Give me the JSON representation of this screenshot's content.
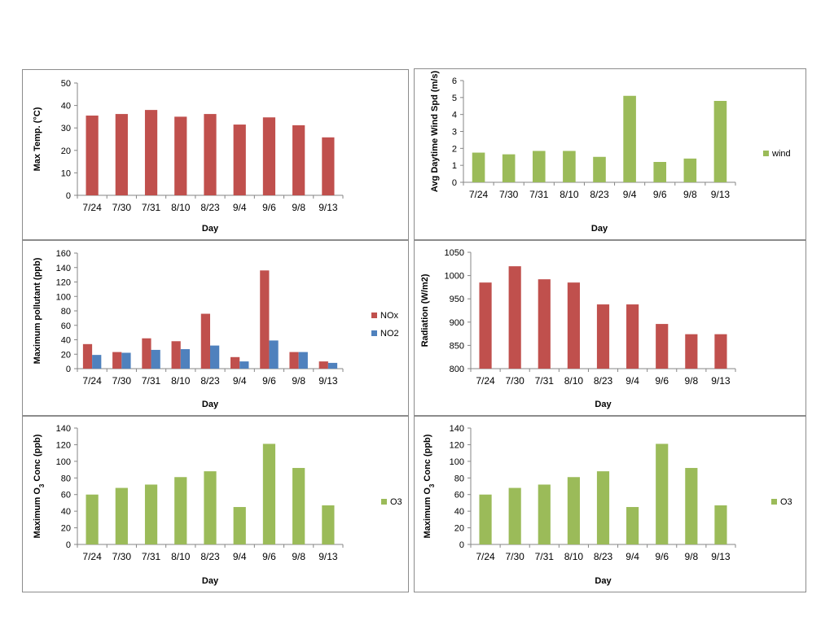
{
  "chart_data": [
    {
      "type": "bar",
      "categories": [
        "7/24",
        "7/30",
        "7/31",
        "8/10",
        "8/23",
        "9/4",
        "9/6",
        "9/8",
        "9/13"
      ],
      "series": [
        {
          "values": [
            35.5,
            36.2,
            38,
            35,
            36.2,
            31.5,
            34.7,
            31.2,
            25.8
          ],
          "color": "#c0504d"
        }
      ],
      "xlabel": "Day",
      "ylabel": "Max Temp. (°C)",
      "ylim": [
        0,
        50
      ],
      "yticks": [
        0,
        10,
        20,
        30,
        40,
        50
      ],
      "legend": null
    },
    {
      "type": "bar",
      "categories": [
        "7/24",
        "7/30",
        "7/31",
        "8/10",
        "8/23",
        "9/4",
        "9/6",
        "9/8",
        "9/13"
      ],
      "series": [
        {
          "name": "wind",
          "values": [
            1.75,
            1.65,
            1.85,
            1.85,
            1.5,
            5.1,
            1.2,
            1.4,
            4.8
          ],
          "color": "#9bbb59"
        }
      ],
      "xlabel": "Day",
      "ylabel": "Avg Daytime Wind Spd (m/s)",
      "ylim": [
        0,
        6
      ],
      "yticks": [
        0,
        1,
        2,
        3,
        4,
        5,
        6
      ],
      "legend": "right"
    },
    {
      "type": "bar",
      "categories": [
        "7/24",
        "7/30",
        "7/31",
        "8/10",
        "8/23",
        "9/4",
        "9/6",
        "9/8",
        "9/13"
      ],
      "series": [
        {
          "name": "NOx",
          "values": [
            34,
            23,
            42,
            38,
            76,
            16,
            136,
            23,
            10
          ],
          "color": "#c0504d"
        },
        {
          "name": "NO2",
          "values": [
            19,
            22,
            26,
            27,
            32,
            10,
            39,
            23,
            8
          ],
          "color": "#4f81bd"
        }
      ],
      "xlabel": "Day",
      "ylabel": "Maximum pollutant (ppb)",
      "ylim": [
        0,
        160
      ],
      "yticks": [
        0,
        20,
        40,
        60,
        80,
        100,
        120,
        140,
        160
      ],
      "legend": "right"
    },
    {
      "type": "bar",
      "categories": [
        "7/24",
        "7/30",
        "7/31",
        "8/10",
        "8/23",
        "9/4",
        "9/6",
        "9/8",
        "9/13"
      ],
      "series": [
        {
          "values": [
            985,
            1020,
            992,
            985,
            938,
            938,
            896,
            874,
            874
          ],
          "color": "#c0504d"
        }
      ],
      "xlabel": "Day",
      "ylabel": "Radiation (W/m2)",
      "ylim": [
        800,
        1050
      ],
      "yticks": [
        800,
        850,
        900,
        950,
        1000,
        1050
      ],
      "legend": null
    },
    {
      "type": "bar",
      "categories": [
        "7/24",
        "7/30",
        "7/31",
        "8/10",
        "8/23",
        "9/4",
        "9/6",
        "9/8",
        "9/13"
      ],
      "series": [
        {
          "name": "O3",
          "values": [
            60,
            68,
            72,
            81,
            88,
            45,
            121,
            92,
            47
          ],
          "color": "#9bbb59"
        }
      ],
      "xlabel": "Day",
      "ylabel": "Maximum O",
      "ylabel_sub": "3",
      "ylabel_tail": " Conc (ppb)",
      "ylim": [
        0,
        140
      ],
      "yticks": [
        0,
        20,
        40,
        60,
        80,
        100,
        120,
        140
      ],
      "legend": "right"
    },
    {
      "type": "bar",
      "categories": [
        "7/24",
        "7/30",
        "7/31",
        "8/10",
        "8/23",
        "9/4",
        "9/6",
        "9/8",
        "9/13"
      ],
      "series": [
        {
          "name": "O3",
          "values": [
            60,
            68,
            72,
            81,
            88,
            45,
            121,
            92,
            47
          ],
          "color": "#9bbb59"
        }
      ],
      "xlabel": "Day",
      "ylabel": "Maximum O",
      "ylabel_sub": "3",
      "ylabel_tail": " Conc (ppb)",
      "ylim": [
        0,
        140
      ],
      "yticks": [
        0,
        20,
        40,
        60,
        80,
        100,
        120,
        140
      ],
      "legend": "right"
    }
  ]
}
